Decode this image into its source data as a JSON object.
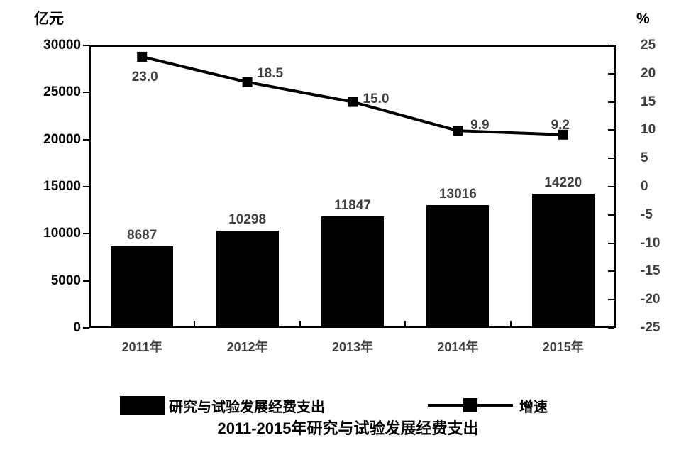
{
  "title": "2011-2015年研究与试验发展经费支出",
  "axes": {
    "left_unit": "亿元",
    "right_unit": "%"
  },
  "legend": {
    "bar_label": "研究与试验发展经费支出",
    "line_label": "增速"
  },
  "chart_data": {
    "type": "combo",
    "subtypes": [
      "bar",
      "line"
    ],
    "title": "2011-2015年研究与试验发展经费支出",
    "categories": [
      "2011年",
      "2012年",
      "2013年",
      "2014年",
      "2015年"
    ],
    "series": [
      {
        "name": "研究与试验发展经费支出",
        "type": "bar",
        "axis": "left",
        "unit": "亿元",
        "values": [
          8687,
          10298,
          11847,
          13016,
          14220
        ],
        "value_labels": [
          "8687",
          "10298",
          "11847",
          "13016",
          "14220"
        ],
        "color": "#000000"
      },
      {
        "name": "增速",
        "type": "line",
        "axis": "right",
        "unit": "%",
        "values": [
          23.0,
          18.5,
          15.0,
          9.9,
          9.2
        ],
        "value_labels": [
          "23.0",
          "18.5",
          "15.0",
          "9.9",
          "9.2"
        ],
        "color": "#000000",
        "marker": "square"
      }
    ],
    "left_axis": {
      "label": "亿元",
      "min": 0,
      "max": 30000,
      "step": 5000,
      "tick_labels": [
        "0",
        "5000",
        "10000",
        "15000",
        "20000",
        "25000",
        "30000"
      ]
    },
    "right_axis": {
      "label": "%",
      "min": -25,
      "max": 25,
      "step": 5,
      "tick_labels": [
        "-25",
        "-20",
        "-15",
        "-10",
        "-5",
        "0",
        "5",
        "10",
        "15",
        "20",
        "25"
      ]
    },
    "grid": false,
    "legend_position": "bottom",
    "colors": {
      "bar": "#000000",
      "line": "#000000",
      "data_label": "#3f3f3f",
      "axis_label_left": "#000000",
      "axis_label_right": "#3f3f3f"
    }
  }
}
